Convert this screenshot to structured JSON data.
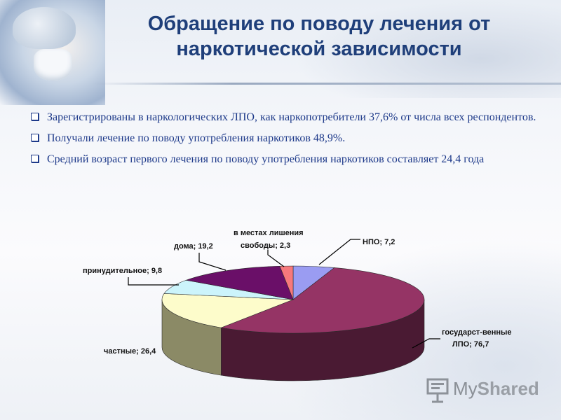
{
  "slide": {
    "title": "Обращение по поводу лечения от наркотической зависимости"
  },
  "bullets": [
    "Зарегистрированы в наркологических ЛПО, как наркопотребители 37,6% от числа всех респондентов.",
    "Получали лечение по поводу употребления наркотиков 48,9%.",
    "Средний возраст первого лечения по поводу употребления наркотиков составляет 24,4 года"
  ],
  "chart_data": {
    "type": "pie",
    "style": "3d",
    "slices": [
      {
        "label": "НПО",
        "value": 7.2,
        "display": "НПО; 7,2",
        "color": "#9a9cf2",
        "side": "#5f61b5"
      },
      {
        "label": "государст-венные ЛПО",
        "value": 76.7,
        "display_lines": [
          "государст-венные",
          "ЛПО; 76,7"
        ],
        "color": "#953465",
        "side": "#4a1a33"
      },
      {
        "label": "частные",
        "value": 26.4,
        "display": "частные; 26,4",
        "color": "#fdfccb",
        "side": "#8b8a66"
      },
      {
        "label": "принудительное",
        "value": 9.8,
        "display": "принудительное; 9,8",
        "color": "#ccf4fb",
        "side": "#7fa1a8"
      },
      {
        "label": "дома",
        "value": 19.2,
        "display": "дома; 19,2",
        "color": "#6a0f68",
        "side": "#3a0838"
      },
      {
        "label": "в местах лишения свободы",
        "value": 2.3,
        "display_lines": [
          "в местах лишения",
          "свободы; 2,3"
        ],
        "color": "#f7797c",
        "side": "#a04c4e"
      }
    ]
  },
  "logo": {
    "text_my": "My",
    "text_shared": "Shared"
  }
}
